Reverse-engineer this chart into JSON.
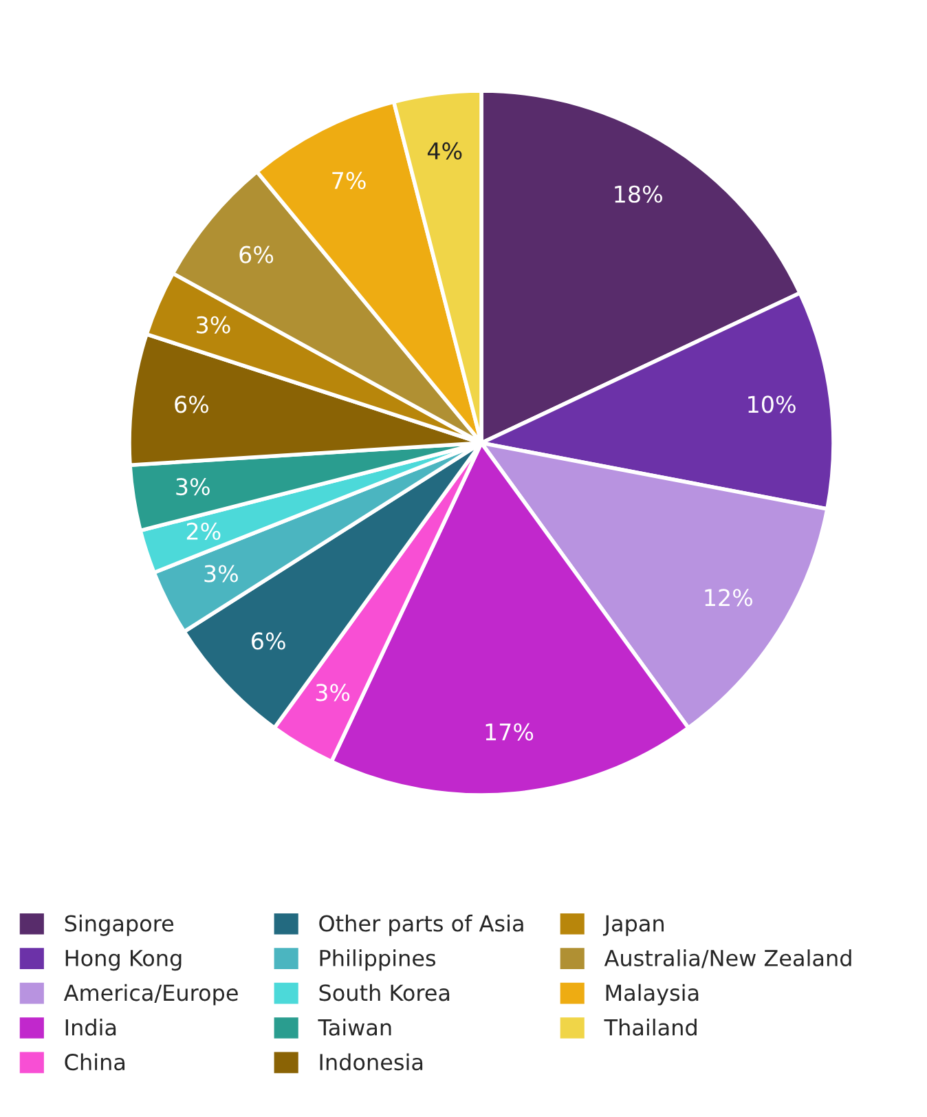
{
  "chart_data": {
    "type": "pie",
    "categories": [
      "Singapore",
      "Hong Kong",
      "America/Europe",
      "India",
      "China",
      "Other parts of Asia",
      "Philippines",
      "South Korea",
      "Taiwan",
      "Indonesia",
      "Japan",
      "Australia/New Zealand",
      "Malaysia",
      "Thailand"
    ],
    "values": [
      18,
      10,
      12,
      17,
      3,
      6,
      3,
      2,
      3,
      6,
      3,
      6,
      7,
      4
    ],
    "colors": [
      "#582c6b",
      "#6c32a8",
      "#b893e0",
      "#c128cc",
      "#f84fd4",
      "#236a80",
      "#4bb5c0",
      "#4cd9d9",
      "#2a9d8f",
      "#8a6305",
      "#b8860b",
      "#b09033",
      "#eeac12",
      "#f0d548"
    ],
    "value_labels": [
      "18%",
      "10%",
      "12%",
      "17%",
      "3%",
      "6%",
      "3%",
      "2%",
      "3%",
      "6%",
      "3%",
      "6%",
      "7%",
      "4%"
    ],
    "legend": "bottom"
  }
}
